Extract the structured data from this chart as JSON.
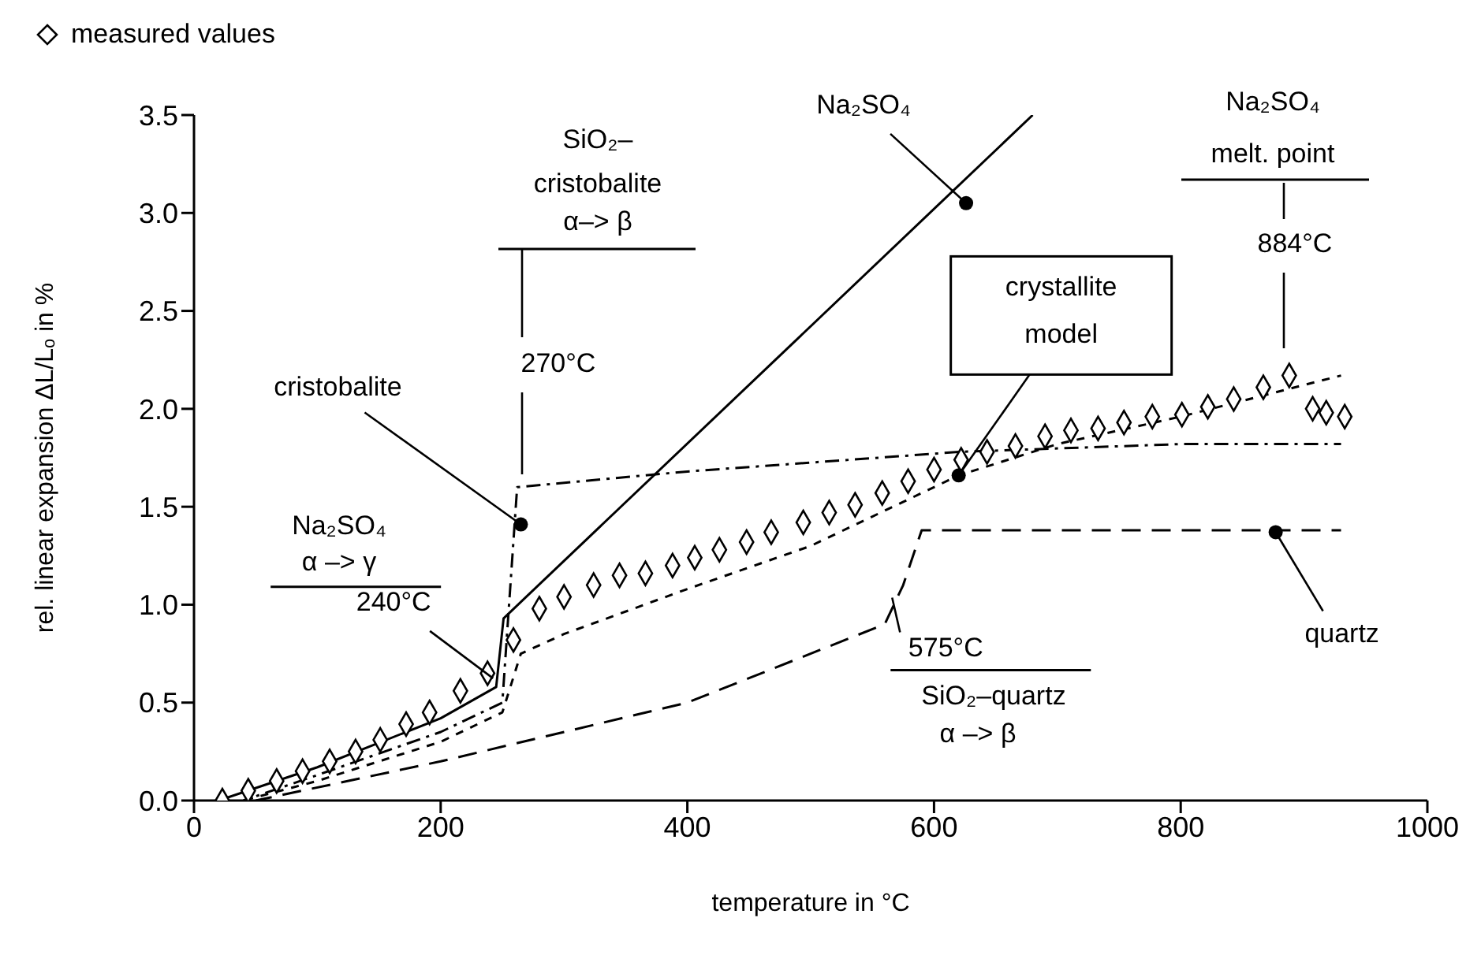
{
  "chart_data": {
    "type": "line",
    "xlabel": "temperature  in °C",
    "ylabel": "rel. linear expansion  ΔL/Lₒ  in  %",
    "xlim": [
      0,
      1000
    ],
    "xticks": [
      0,
      200,
      400,
      600,
      800,
      1000
    ],
    "ylim": [
      0,
      3.5
    ],
    "yticks": [
      {
        "value": 0,
        "label": "0.0"
      },
      0.5,
      {
        "value": 1,
        "label": "1.0"
      },
      1.5,
      {
        "value": 2,
        "label": "2.0"
      },
      2.5,
      {
        "value": 3,
        "label": "3.0"
      },
      3.5
    ],
    "grid": false,
    "legend": "top left",
    "series": [
      {
        "type": "scatter",
        "name": "measured values",
        "color": "#000000",
        "marker": "diamond",
        "x": [
          23,
          44,
          67,
          88,
          110,
          131,
          151,
          172,
          191,
          216,
          238,
          259,
          280,
          300,
          324,
          345,
          366,
          388,
          406,
          426,
          448,
          468,
          494,
          515,
          536,
          558,
          579,
          600,
          622,
          643,
          666,
          690,
          711,
          733,
          754,
          777,
          801,
          822,
          843,
          867,
          888,
          907,
          918,
          933
        ],
        "values": [
          0,
          0.05,
          0.1,
          0.15,
          0.2,
          0.25,
          0.31,
          0.39,
          0.45,
          0.56,
          0.65,
          0.82,
          0.98,
          1.04,
          1.1,
          1.15,
          1.16,
          1.2,
          1.24,
          1.28,
          1.32,
          1.37,
          1.42,
          1.47,
          1.51,
          1.57,
          1.63,
          1.69,
          1.74,
          1.78,
          1.81,
          1.86,
          1.89,
          1.9,
          1.93,
          1.96,
          1.97,
          2.01,
          2.05,
          2.11,
          2.17,
          2,
          1.98,
          1.96
        ]
      },
      {
        "color": "#000000",
        "line_style": "solid",
        "x": [
          20,
          100,
          200,
          245,
          251,
          680
        ],
        "values": [
          0,
          0.17,
          0.42,
          0.58,
          0.93,
          3.5
        ]
      },
      {
        "color": "#000000",
        "line_style": "dashdot",
        "x": [
          40,
          100,
          200,
          250,
          262,
          400,
          620,
          800,
          930
        ],
        "values": [
          0,
          0.13,
          0.35,
          0.5,
          1.6,
          1.68,
          1.78,
          1.82,
          1.82
        ]
      },
      {
        "color": "#000000",
        "line_style": "dashed",
        "x": [
          50,
          200,
          400,
          560,
          575,
          590,
          930
        ],
        "values": [
          0,
          0.2,
          0.5,
          0.9,
          1.1,
          1.38,
          1.38
        ]
      },
      {
        "color": "#000000",
        "line_style": "dotted",
        "x": [
          40,
          100,
          200,
          250,
          265,
          300,
          400,
          500,
          620,
          700,
          800,
          930
        ],
        "values": [
          0,
          0.1,
          0.3,
          0.45,
          0.75,
          0.85,
          1.08,
          1.3,
          1.66,
          1.82,
          1.96,
          2.17
        ]
      }
    ],
    "annotations": [
      {
        "text": "Na₂SO₄",
        "x": 626,
        "y": 3.05
      },
      {
        "text": "cristobalite",
        "x": 265,
        "y": 1.41
      },
      {
        "text": "crystallite\nmodel",
        "x": 620,
        "y": 1.66
      },
      {
        "text": "quartz",
        "x": 877,
        "y": 1.37
      },
      "270°C",
      {
        "text": "240°C",
        "x": 245,
        "y": 0.6
      },
      {
        "text": "575°C",
        "x": 575,
        "y": 1.1
      },
      "884°C",
      "SiO₂–\ncristobalite\nα–> β",
      "Na₂SO₄\nα –> γ",
      "SiO₂–quartz\nα –> β",
      "Na₂SO₄\nmelt. point"
    ]
  }
}
